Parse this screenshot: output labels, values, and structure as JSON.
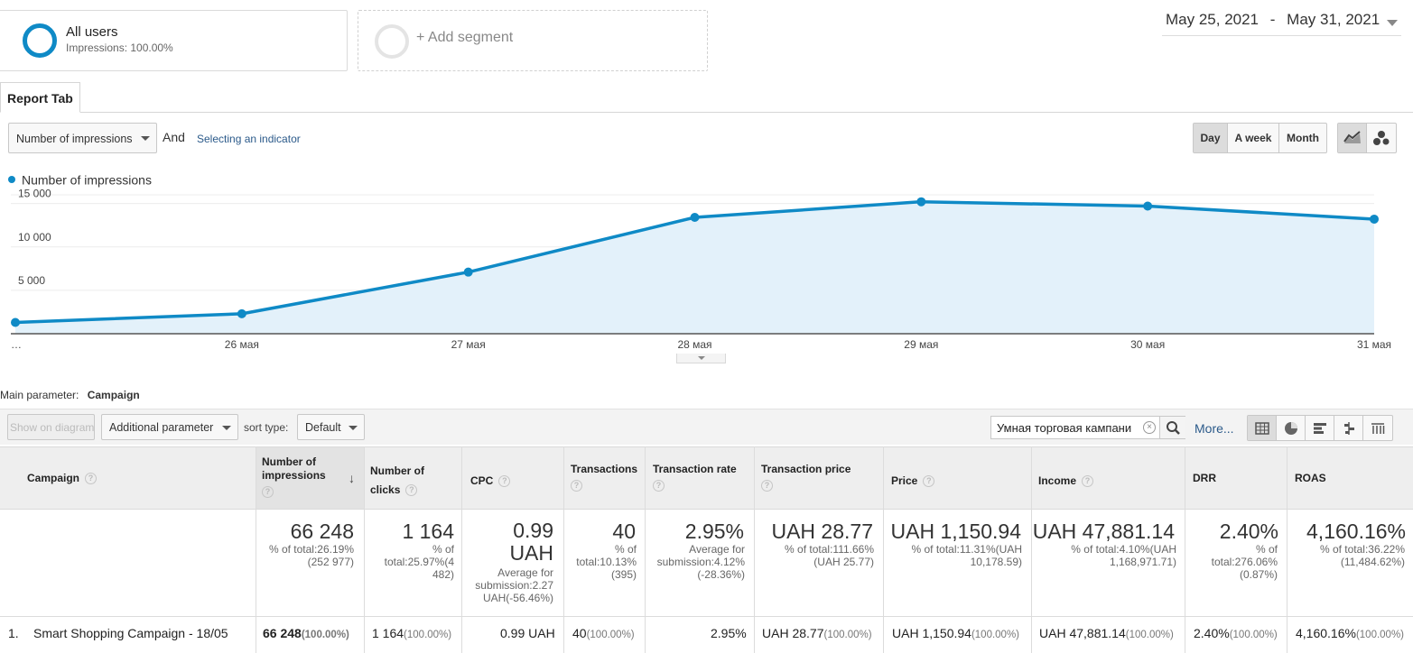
{
  "segments": {
    "active": {
      "title": "All users",
      "subtitle": "Impressions: 100.00%"
    },
    "add_label": "+ Add segment"
  },
  "date_range": {
    "start": "May 25, 2021",
    "separator": "-",
    "end": "May 31, 2021"
  },
  "report_tab": "Report Tab",
  "metric_controls": {
    "primary_metric": "Number of impressions",
    "and_label": "And",
    "secondary_link": "Selecting an indicator",
    "granularity": [
      "Day",
      "A week",
      "Month"
    ],
    "active_granularity": "Day"
  },
  "chart_data": {
    "type": "area",
    "legend": "Number of impressions",
    "x": [
      "…",
      "26 мая",
      "27 мая",
      "28 мая",
      "29 мая",
      "30 мая",
      "31 мая"
    ],
    "values": [
      1300,
      2300,
      7100,
      13400,
      15200,
      14700,
      13200
    ],
    "y_ticks": [
      5000,
      10000,
      15000
    ],
    "y_tick_labels": [
      "5 000",
      "10 000",
      "15 000"
    ],
    "ylim": [
      0,
      16000
    ],
    "grid": true,
    "colors": {
      "line": "#0f8ac6",
      "fill": "#e3f1fa"
    }
  },
  "table_controls": {
    "main_param_label": "Main parameter:",
    "main_param_value": "Campaign",
    "show_on_diagram": "Show on diagram",
    "additional_param": "Additional parameter",
    "sort_label": "sort type:",
    "sort_value": "Default",
    "search_value": "Умная торговая кампани",
    "more_label": "More..."
  },
  "table": {
    "headers": {
      "campaign": "Campaign",
      "impressions": "Number of impressions",
      "clicks": "Number of clicks",
      "cpc": "CPC",
      "transactions": "Transactions",
      "transaction_rate": "Transaction rate",
      "transaction_price": "Transaction price",
      "price": "Price",
      "income": "Income",
      "drr": "DRR",
      "roas": "ROAS"
    },
    "totals": {
      "impressions": {
        "value": "66 248",
        "note": "% of total:26.19% (252 977)"
      },
      "clicks": {
        "value": "1 164",
        "note": "% of total:25.97%(4 482)"
      },
      "cpc": {
        "value": "0.99 UAH",
        "note": "Average for submission:2.27 UAH(-56.46%)"
      },
      "transactions": {
        "value": "40",
        "note": "% of total:10.13% (395)"
      },
      "transaction_rate": {
        "value": "2.95%",
        "note": "Average for submission:4.12% (-28.36%)"
      },
      "transaction_price": {
        "value": "UAH 28.77",
        "note": "% of total:111.66% (UAH 25.77)"
      },
      "price": {
        "value": "UAH 1,150.94",
        "note": "% of total:11.31%(UAH 10,178.59)"
      },
      "income": {
        "value": "UAH 47,881.14",
        "note": "% of total:4.10%(UAH 1,168,971.71)"
      },
      "drr": {
        "value": "2.40%",
        "note": "% of total:276.06% (0.87%)"
      },
      "roas": {
        "value": "4,160.16%",
        "note": "% of total:36.22% (11,484.62%)"
      }
    },
    "row1": {
      "index": "1.",
      "campaign": "Smart Shopping Campaign - 18/05",
      "impressions": "66 248",
      "impressions_pct": "(100.00%)",
      "clicks": "1 164",
      "clicks_pct": "(100.00%)",
      "cpc": "0.99 UAH",
      "transactions": "40",
      "transactions_pct": "(100.00%)",
      "transaction_rate": "2.95%",
      "transaction_price": "UAH 28.77",
      "transaction_price_pct": "(100.00%)",
      "price": "UAH 1,150.94",
      "price_pct": "(100.00%)",
      "income": "UAH 47,881.14",
      "income_pct": "(100.00%)",
      "drr": "2.40%",
      "drr_pct": "(100.00%)",
      "roas": "4,160.16%",
      "roas_pct": "(100.00%)"
    }
  }
}
